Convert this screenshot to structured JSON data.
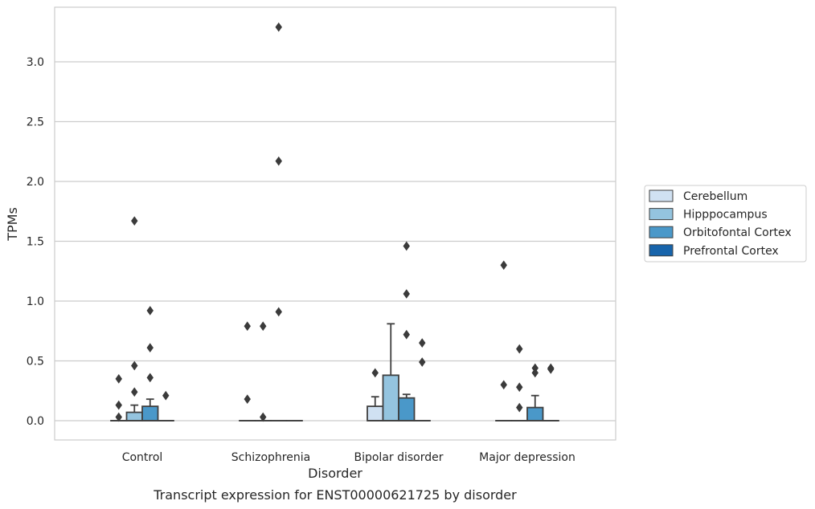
{
  "chart_data": {
    "type": "boxplot",
    "title": "Transcript expression for ENST00000621725 by disorder",
    "xlabel": "Disorder",
    "ylabel": "TPMs",
    "ylim": [
      -0.16,
      3.46
    ],
    "yticks": [
      "0.0",
      "0.5",
      "1.0",
      "1.5",
      "2.0",
      "2.5",
      "3.0"
    ],
    "grid": "horizontal",
    "legend_position": "right",
    "categories": [
      "Control",
      "Schizophrenia",
      "Bipolar disorder",
      "Major depression"
    ],
    "series": [
      {
        "name": "Cerebellum",
        "color": "#d0e1f2"
      },
      {
        "name": "Hipppocampus",
        "color": "#94c4df"
      },
      {
        "name": "Orbitofontal Cortex",
        "color": "#4a98c9"
      },
      {
        "name": "Prefrontal Cortex",
        "color": "#1764ab"
      }
    ],
    "boxes": [
      {
        "category": 0,
        "series": 0,
        "q1": 0,
        "median": 0,
        "q3": 0,
        "whisker_low": 0,
        "whisker_high": 0,
        "outliers": [
          0.35,
          0.13,
          0.03
        ]
      },
      {
        "category": 0,
        "series": 1,
        "q1": 0,
        "median": 0,
        "q3": 0.07,
        "whisker_low": 0,
        "whisker_high": 0.13,
        "outliers": [
          1.67,
          0.46,
          0.24
        ]
      },
      {
        "category": 0,
        "series": 2,
        "q1": 0,
        "median": 0,
        "q3": 0.12,
        "whisker_low": 0,
        "whisker_high": 0.18,
        "outliers": [
          0.92,
          0.61,
          0.36
        ]
      },
      {
        "category": 0,
        "series": 3,
        "q1": 0,
        "median": 0,
        "q3": 0,
        "whisker_low": 0,
        "whisker_high": 0,
        "outliers": [
          0.21
        ]
      },
      {
        "category": 1,
        "series": 0,
        "q1": 0,
        "median": 0,
        "q3": 0,
        "whisker_low": 0,
        "whisker_high": 0,
        "outliers": [
          0.79,
          0.18
        ]
      },
      {
        "category": 1,
        "series": 1,
        "q1": 0,
        "median": 0,
        "q3": 0,
        "whisker_low": 0,
        "whisker_high": 0,
        "outliers": [
          0.79,
          0.03
        ]
      },
      {
        "category": 1,
        "series": 2,
        "q1": 0,
        "median": 0,
        "q3": 0,
        "whisker_low": 0,
        "whisker_high": 0,
        "outliers": [
          3.29,
          2.17,
          0.91
        ]
      },
      {
        "category": 1,
        "series": 3,
        "q1": 0,
        "median": 0,
        "q3": 0,
        "whisker_low": 0,
        "whisker_high": 0,
        "outliers": []
      },
      {
        "category": 2,
        "series": 0,
        "q1": 0,
        "median": 0,
        "q3": 0.12,
        "whisker_low": 0,
        "whisker_high": 0.2,
        "outliers": [
          0.4
        ]
      },
      {
        "category": 2,
        "series": 1,
        "q1": 0,
        "median": 0,
        "q3": 0.38,
        "whisker_low": 0,
        "whisker_high": 0.81,
        "outliers": []
      },
      {
        "category": 2,
        "series": 2,
        "q1": 0,
        "median": 0,
        "q3": 0.19,
        "whisker_low": 0,
        "whisker_high": 0.22,
        "outliers": [
          1.46,
          1.06,
          0.72
        ]
      },
      {
        "category": 2,
        "series": 3,
        "q1": 0,
        "median": 0,
        "q3": 0,
        "whisker_low": 0,
        "whisker_high": 0,
        "outliers": [
          0.65,
          0.49
        ]
      },
      {
        "category": 3,
        "series": 0,
        "q1": 0,
        "median": 0,
        "q3": 0,
        "whisker_low": 0,
        "whisker_high": 0,
        "outliers": [
          1.3,
          0.3
        ]
      },
      {
        "category": 3,
        "series": 1,
        "q1": 0,
        "median": 0,
        "q3": 0,
        "whisker_low": 0,
        "whisker_high": 0,
        "outliers": [
          0.6,
          0.28,
          0.11
        ]
      },
      {
        "category": 3,
        "series": 2,
        "q1": 0,
        "median": 0,
        "q3": 0.11,
        "whisker_low": 0,
        "whisker_high": 0.21,
        "outliers": [
          0.44,
          0.4
        ]
      },
      {
        "category": 3,
        "series": 3,
        "q1": 0,
        "median": 0,
        "q3": 0,
        "whisker_low": 0,
        "whisker_high": 0,
        "outliers": [
          0.44,
          0.43
        ]
      }
    ]
  }
}
